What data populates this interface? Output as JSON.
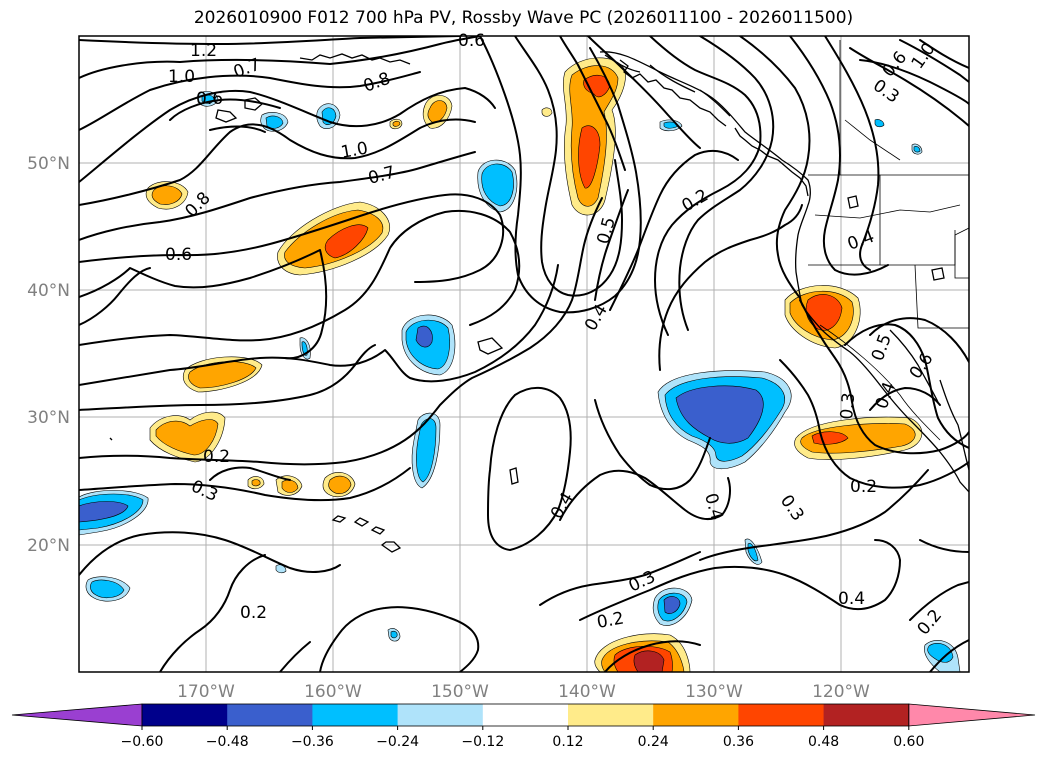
{
  "title": "2026010900 F012 700 hPa PV, Rossby Wave PC (2026011100 - 2026011500)",
  "axes": {
    "lon_labels": [
      "170°W",
      "160°W",
      "150°W",
      "140°W",
      "130°W",
      "120°W"
    ],
    "lat_labels": [
      "50°N",
      "40°N",
      "30°N",
      "20°N"
    ]
  },
  "colorbar": {
    "ticks": [
      "−0.60",
      "−0.48",
      "−0.36",
      "−0.24",
      "−0.12",
      "0.12",
      "0.24",
      "0.36",
      "0.48",
      "0.60"
    ],
    "colors": [
      "#9a3fd1",
      "#00008b",
      "#3a5fcd",
      "#00bfff",
      "#afe3fa",
      "#ffffff",
      "#ffeb8a",
      "#ffa500",
      "#ff4500",
      "#b22222",
      "#ff88aa"
    ]
  },
  "contour_labels": [
    "1.2",
    "1.0",
    "0.7",
    "0.6",
    "0.8",
    "0.6",
    "1.0",
    "0.7",
    "0.8",
    "0.6",
    "0.5",
    "0.2",
    "0.4",
    "0.4",
    "0.2",
    "0.3",
    "0.2",
    "0.4",
    "0.4",
    "0.3",
    "0.2",
    "0.3",
    "0.2",
    "0.4",
    "0.2",
    "0.5",
    "0.6",
    "0.3",
    "0.4",
    "0.6",
    "1.0",
    "0.3"
  ]
}
